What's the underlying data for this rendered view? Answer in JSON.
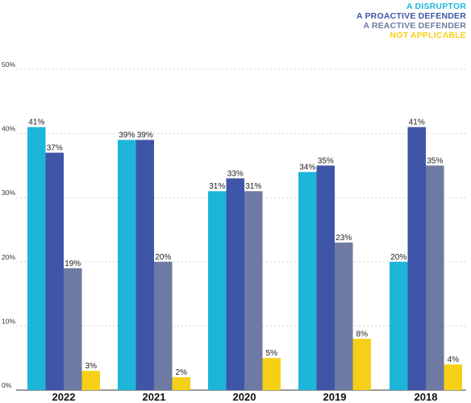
{
  "colors": {
    "disruptor": "#1db6d9",
    "proactive": "#3f55a7",
    "reactive": "#6e7aa3",
    "not_applicable": "#f6d016",
    "grid": "#cfcfcf",
    "text": "#222222"
  },
  "chart_data": {
    "type": "bar",
    "categories": [
      "2022",
      "2021",
      "2020",
      "2019",
      "2018"
    ],
    "series": [
      {
        "name": "A DISRUPTOR",
        "color": "#1db6d9",
        "values": [
          41,
          39,
          31,
          34,
          20
        ]
      },
      {
        "name": "A PROACTIVE DEFENDER",
        "color": "#3f55a7",
        "values": [
          37,
          39,
          33,
          35,
          41
        ]
      },
      {
        "name": "A REACTIVE DEFENDER",
        "color": "#6e7aa3",
        "values": [
          19,
          20,
          31,
          23,
          35
        ]
      },
      {
        "name": "NOT APPLICABLE",
        "color": "#f6d016",
        "values": [
          3,
          2,
          5,
          8,
          4
        ]
      }
    ],
    "yticks": [
      "0%",
      "10%",
      "20%",
      "30%",
      "40%",
      "50%"
    ],
    "ylim": [
      0,
      50
    ],
    "grid": true,
    "legend_position": "top-right",
    "value_suffix": "%"
  }
}
